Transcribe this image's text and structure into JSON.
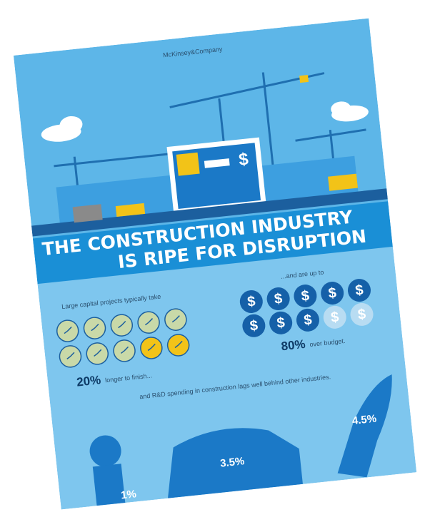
{
  "header": {
    "brand": "McKinsey&Company"
  },
  "banner": {
    "line1": "THE CONSTRUCTION INDUSTRY",
    "line2": "IS RIPE FOR DISRUPTION"
  },
  "schedule": {
    "intro": "Large capital projects typically take",
    "value": "20%",
    "suffix": "longer to finish..."
  },
  "budget": {
    "intro": "...and are up to",
    "value": "80%",
    "suffix": "over budget."
  },
  "rnd": {
    "caption": "and R&D spending in construction lags well behind other industries.",
    "values": [
      "1%",
      "3.5%",
      "4.5%"
    ]
  }
}
